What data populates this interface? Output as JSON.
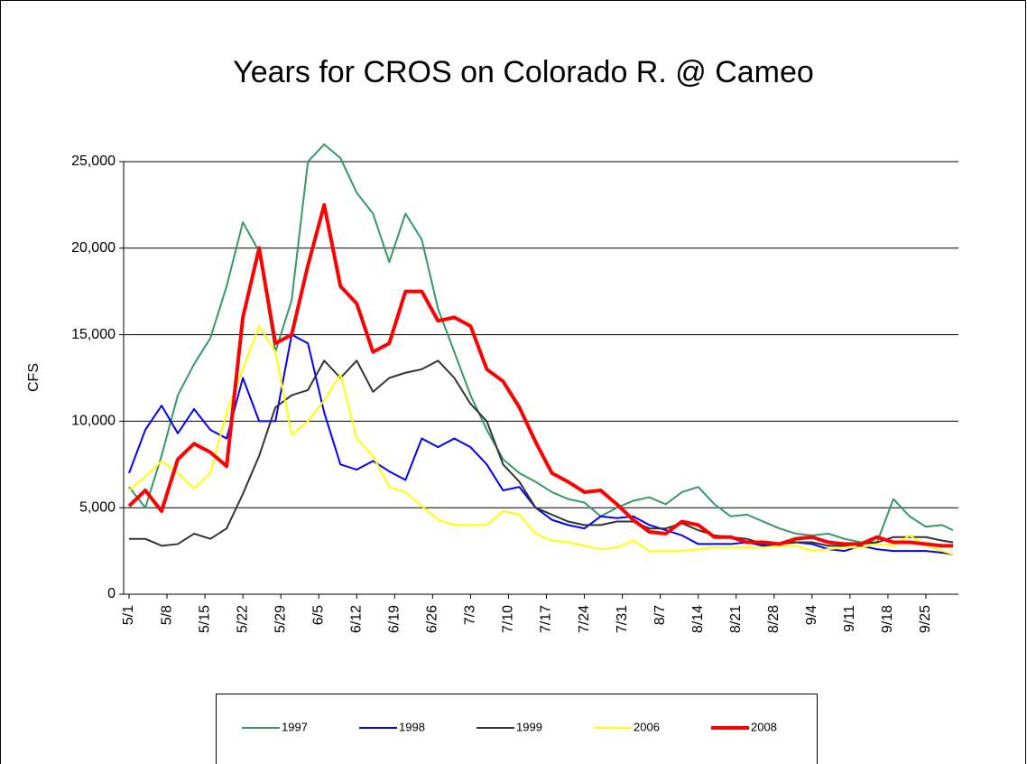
{
  "chart_data": {
    "type": "line",
    "title": "Years for CROS on Colorado R. @ Cameo",
    "y_label": "CFS",
    "x": [
      0,
      3,
      6,
      9,
      12,
      15,
      18,
      21,
      24,
      27,
      30,
      33,
      36,
      39,
      42,
      45,
      48,
      51,
      54,
      57,
      60,
      63,
      66,
      69,
      72,
      75,
      78,
      81,
      84,
      87,
      90,
      93,
      96,
      99,
      102,
      105,
      108,
      111,
      114,
      117,
      120,
      123,
      126,
      129,
      132,
      135,
      138,
      141,
      144,
      147,
      150,
      152
    ],
    "xlim": [
      -1,
      153
    ],
    "xticks": [
      {
        "value": 0,
        "label": "5/1"
      },
      {
        "value": 7,
        "label": "5/8"
      },
      {
        "value": 14,
        "label": "5/15"
      },
      {
        "value": 21,
        "label": "5/22"
      },
      {
        "value": 28,
        "label": "5/29"
      },
      {
        "value": 35,
        "label": "6/5"
      },
      {
        "value": 42,
        "label": "6/12"
      },
      {
        "value": 49,
        "label": "6/19"
      },
      {
        "value": 56,
        "label": "6/26"
      },
      {
        "value": 63,
        "label": "7/3"
      },
      {
        "value": 70,
        "label": "7/10"
      },
      {
        "value": 77,
        "label": "7/17"
      },
      {
        "value": 84,
        "label": "7/24"
      },
      {
        "value": 91,
        "label": "7/31"
      },
      {
        "value": 98,
        "label": "8/7"
      },
      {
        "value": 105,
        "label": "8/14"
      },
      {
        "value": 112,
        "label": "8/21"
      },
      {
        "value": 119,
        "label": "8/28"
      },
      {
        "value": 126,
        "label": "9/4"
      },
      {
        "value": 133,
        "label": "9/11"
      },
      {
        "value": 140,
        "label": "9/18"
      },
      {
        "value": 147,
        "label": "9/25"
      }
    ],
    "ylim": [
      0,
      25000
    ],
    "yticks": [
      0,
      {
        "value": 5000,
        "label": "5,000"
      },
      {
        "value": 10000,
        "label": "10,000"
      },
      {
        "value": 15000,
        "label": "15,000"
      },
      {
        "value": 20000,
        "label": "20,000"
      },
      {
        "value": 25000,
        "label": "25,000"
      }
    ],
    "grid": true,
    "legend": "bottom",
    "series": [
      {
        "name": "1997",
        "color": "#339966",
        "width": 2,
        "values": [
          6200,
          5000,
          8000,
          11500,
          13300,
          14800,
          17800,
          21500,
          19800,
          14000,
          17000,
          25000,
          26000,
          25200,
          23200,
          22000,
          19200,
          22000,
          20500,
          16500,
          14000,
          11500,
          9500,
          7800,
          7000,
          6500,
          5900,
          5500,
          5300,
          4500,
          5000,
          5400,
          5600,
          5200,
          5900,
          6200,
          5200,
          4500,
          4600,
          4200,
          3800,
          3500,
          3400,
          3500,
          3200,
          3000,
          3000,
          5500,
          4500,
          3900,
          4000,
          3700
        ]
      },
      {
        "name": "1998",
        "color": "#0000ff",
        "width": 2,
        "values": [
          7000,
          9500,
          10900,
          9300,
          10700,
          9500,
          9000,
          12500,
          10000,
          10000,
          15000,
          14500,
          10500,
          7500,
          7200,
          7700,
          7100,
          6600,
          9000,
          8500,
          9000,
          8500,
          7500,
          6000,
          6200,
          5000,
          4300,
          4000,
          3800,
          4500,
          4400,
          4500,
          4000,
          3700,
          3400,
          2900,
          2900,
          2900,
          3000,
          2800,
          2900,
          3000,
          2900,
          2600,
          2500,
          2800,
          2600,
          2500,
          2500,
          2500,
          2400,
          2300
        ]
      },
      {
        "name": "1999",
        "color": "#333333",
        "width": 2,
        "values": [
          3200,
          3200,
          2800,
          2900,
          3500,
          3200,
          3800,
          5800,
          8000,
          10800,
          11500,
          11800,
          13500,
          12500,
          13500,
          11700,
          12500,
          12800,
          13000,
          13500,
          12500,
          11000,
          10000,
          7500,
          6500,
          5000,
          4600,
          4200,
          4000,
          4000,
          4200,
          4200,
          3800,
          3800,
          4100,
          3700,
          3400,
          3300,
          3200,
          2900,
          2900,
          3000,
          3000,
          2800,
          2800,
          2900,
          3000,
          3300,
          3300,
          3300,
          3100,
          3000
        ]
      },
      {
        "name": "2006",
        "color": "#ffff00",
        "width": 2,
        "values": [
          6000,
          6800,
          7700,
          7000,
          6100,
          7000,
          10500,
          13000,
          15500,
          14000,
          9200,
          10000,
          11200,
          12700,
          9000,
          8000,
          6200,
          5900,
          5100,
          4300,
          4000,
          4000,
          4000,
          4800,
          4600,
          3500,
          3100,
          3000,
          2800,
          2600,
          2700,
          3100,
          2500,
          2500,
          2500,
          2600,
          2700,
          2700,
          2700,
          2700,
          2800,
          2800,
          2500,
          2600,
          2700,
          2700,
          2900,
          2800,
          3400,
          2800,
          2500,
          2300
        ]
      },
      {
        "name": "2008",
        "color": "#ff0000",
        "width": 4,
        "values": [
          5100,
          6000,
          4800,
          7800,
          8700,
          8200,
          7400,
          16000,
          20000,
          14500,
          15000,
          19000,
          22500,
          17800,
          16800,
          14000,
          14500,
          17500,
          17500,
          15800,
          16000,
          15500,
          13000,
          12300,
          10800,
          8800,
          7000,
          6500,
          5900,
          6000,
          5200,
          4300,
          3600,
          3500,
          4200,
          4000,
          3300,
          3300,
          3000,
          3000,
          2900,
          3200,
          3300,
          3000,
          2900,
          2900,
          3300,
          3000,
          3000,
          2900,
          2800,
          2800
        ]
      }
    ]
  }
}
